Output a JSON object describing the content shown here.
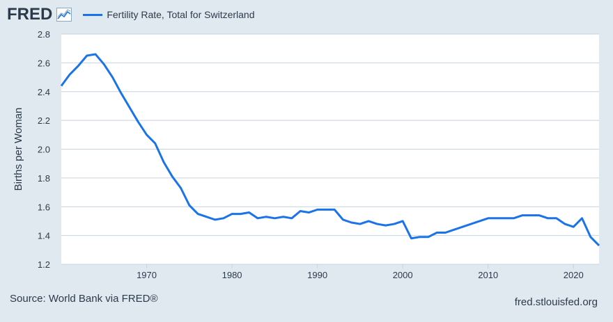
{
  "header": {
    "logo": "FRED",
    "logo_icon": "line-chart-icon",
    "series_label": "Fertility Rate, Total for Switzerland"
  },
  "footer": {
    "source": "Source: World Bank via FRED®",
    "site": "fred.stlouisfed.org"
  },
  "colors": {
    "line": "#1a73e8",
    "background": "#e1e9f0",
    "plot_background": "#ffffff",
    "text": "#2b3a4a"
  },
  "chart_data": {
    "type": "line",
    "title": "",
    "xlabel": "",
    "ylabel": "Births per Woman",
    "xlim": [
      1960,
      2023
    ],
    "ylim": [
      1.2,
      2.8
    ],
    "yticks": [
      1.2,
      1.4,
      1.6,
      1.8,
      2.0,
      2.2,
      2.4,
      2.6,
      2.8
    ],
    "ytick_labels": [
      "1.2",
      "1.4",
      "1.6",
      "1.8",
      "2.0",
      "2.2",
      "2.4",
      "2.6",
      "2.8"
    ],
    "xticks": [
      1970,
      1980,
      1990,
      2000,
      2010,
      2020
    ],
    "xtick_labels": [
      "1970",
      "1980",
      "1990",
      "2000",
      "2010",
      "2020"
    ],
    "grid": "horizontal",
    "series": [
      {
        "name": "Fertility Rate, Total for Switzerland",
        "x": [
          1960,
          1961,
          1962,
          1963,
          1964,
          1965,
          1966,
          1967,
          1968,
          1969,
          1970,
          1971,
          1972,
          1973,
          1974,
          1975,
          1976,
          1977,
          1978,
          1979,
          1980,
          1981,
          1982,
          1983,
          1984,
          1985,
          1986,
          1987,
          1988,
          1989,
          1990,
          1991,
          1992,
          1993,
          1994,
          1995,
          1996,
          1997,
          1998,
          1999,
          2000,
          2001,
          2002,
          2003,
          2004,
          2005,
          2006,
          2007,
          2008,
          2009,
          2010,
          2011,
          2012,
          2013,
          2014,
          2015,
          2016,
          2017,
          2018,
          2019,
          2020,
          2021,
          2022,
          2023
        ],
        "y": [
          2.44,
          2.52,
          2.58,
          2.65,
          2.66,
          2.59,
          2.5,
          2.39,
          2.29,
          2.19,
          2.1,
          2.04,
          1.91,
          1.81,
          1.73,
          1.61,
          1.55,
          1.53,
          1.51,
          1.52,
          1.55,
          1.55,
          1.56,
          1.52,
          1.53,
          1.52,
          1.53,
          1.52,
          1.57,
          1.56,
          1.58,
          1.58,
          1.58,
          1.51,
          1.49,
          1.48,
          1.5,
          1.48,
          1.47,
          1.48,
          1.5,
          1.38,
          1.39,
          1.39,
          1.42,
          1.42,
          1.44,
          1.46,
          1.48,
          1.5,
          1.52,
          1.52,
          1.52,
          1.52,
          1.54,
          1.54,
          1.54,
          1.52,
          1.52,
          1.48,
          1.46,
          1.52,
          1.39,
          1.33
        ]
      }
    ]
  }
}
